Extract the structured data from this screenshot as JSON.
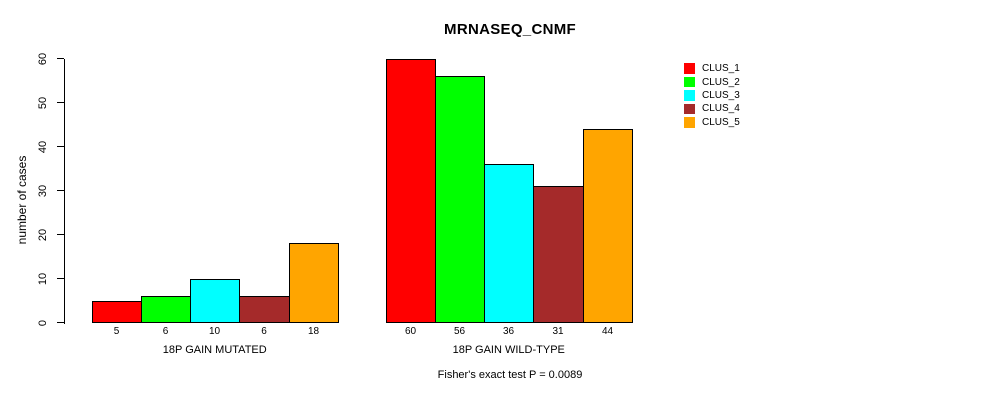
{
  "chart_data": {
    "type": "bar",
    "title": "MRNASEQ_CNMF",
    "ylabel": "number of cases",
    "xlabel": "",
    "ylim": [
      0,
      60
    ],
    "yticks": [
      0,
      10,
      20,
      30,
      40,
      50,
      60
    ],
    "grid": false,
    "legend_position": "right",
    "categories": [
      "18P GAIN MUTATED",
      "18P GAIN WILD-TYPE"
    ],
    "series": [
      {
        "name": "CLUS_1",
        "color": "#FF0000",
        "values": [
          5,
          60
        ]
      },
      {
        "name": "CLUS_2",
        "color": "#00FF00",
        "values": [
          6,
          56
        ]
      },
      {
        "name": "CLUS_3",
        "color": "#00FFFF",
        "values": [
          10,
          36
        ]
      },
      {
        "name": "CLUS_4",
        "color": "#A52A2A",
        "values": [
          6,
          31
        ]
      },
      {
        "name": "CLUS_5",
        "color": "#FFA500",
        "values": [
          18,
          44
        ]
      }
    ],
    "bar_value_labels_shown": true,
    "footnote": "Fisher's exact test P = 0.0089"
  }
}
